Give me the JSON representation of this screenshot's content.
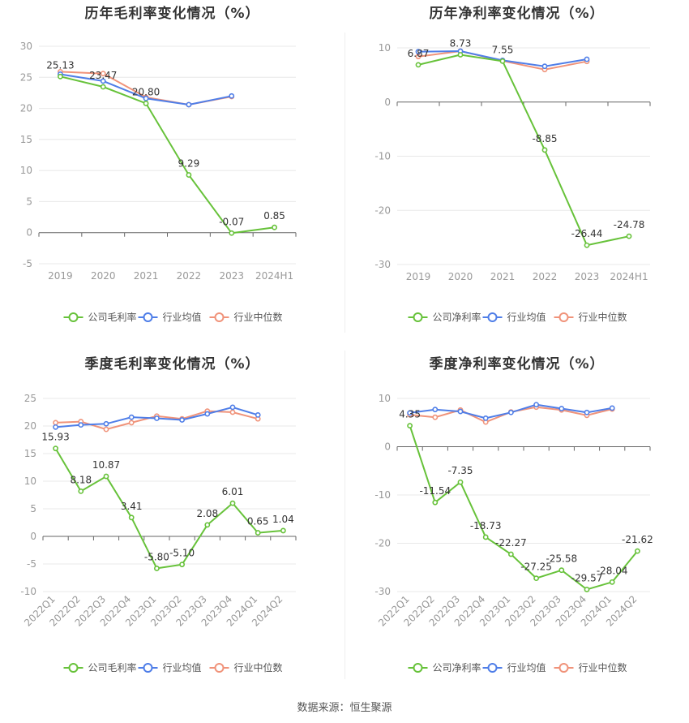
{
  "colors": {
    "company": "#67c23a",
    "avg": "#4f7ee8",
    "median": "#f0937a",
    "grid": "#e8e8e8",
    "axis": "#999999",
    "label": "#333333"
  },
  "source": "数据来源：恒生聚源",
  "chart_data": [
    {
      "type": "line",
      "title": "历年毛利率变化情况（%）",
      "categories": [
        "2019",
        "2020",
        "2021",
        "2022",
        "2023",
        "2024H1"
      ],
      "ylim": [
        -5,
        30
      ],
      "yticks": [
        -5,
        0,
        5,
        10,
        15,
        20,
        25,
        30
      ],
      "series": [
        {
          "name": "公司毛利率",
          "values": [
            25.13,
            23.47,
            20.8,
            9.29,
            -0.07,
            0.85
          ],
          "labels": [
            "25.13",
            "23.47",
            "20.80",
            "9.29",
            "-0.07",
            "0.85"
          ]
        },
        {
          "name": "行业均值",
          "values": [
            25.5,
            24.4,
            21.6,
            20.6,
            22.0,
            null
          ]
        },
        {
          "name": "行业中位数",
          "values": [
            25.9,
            25.6,
            21.8,
            20.6,
            21.9,
            null
          ]
        }
      ],
      "legend": [
        "公司毛利率",
        "行业均值",
        "行业中位数"
      ]
    },
    {
      "type": "line",
      "title": "历年净利率变化情况（%）",
      "categories": [
        "2019",
        "2020",
        "2021",
        "2022",
        "2023",
        "2024H1"
      ],
      "ylim": [
        -30,
        10
      ],
      "yticks": [
        -30,
        -20,
        -10,
        0,
        10
      ],
      "series": [
        {
          "name": "公司净利率",
          "values": [
            6.87,
            8.73,
            7.55,
            -8.85,
            -26.44,
            -24.78
          ],
          "labels": [
            "6.87",
            "8.73",
            "7.55",
            "-8.85",
            "-26.44",
            "-24.78"
          ]
        },
        {
          "name": "行业均值",
          "values": [
            9.3,
            9.4,
            7.7,
            6.6,
            7.9,
            null
          ]
        },
        {
          "name": "行业中位数",
          "values": [
            8.4,
            9.4,
            7.6,
            6.0,
            7.5,
            null
          ]
        }
      ],
      "legend": [
        "公司净利率",
        "行业均值",
        "行业中位数"
      ]
    },
    {
      "type": "line",
      "title": "季度毛利率变化情况（%）",
      "categories": [
        "2022Q1",
        "2022Q2",
        "2022Q3",
        "2022Q4",
        "2023Q1",
        "2023Q2",
        "2023Q3",
        "2023Q4",
        "2024Q1",
        "2024Q2"
      ],
      "ylim": [
        -10,
        25
      ],
      "yticks": [
        -10,
        -5,
        0,
        5,
        10,
        15,
        20,
        25
      ],
      "series": [
        {
          "name": "公司毛利率",
          "values": [
            15.93,
            8.18,
            10.87,
            3.41,
            -5.8,
            -5.1,
            2.08,
            6.01,
            0.65,
            1.04
          ],
          "labels": [
            "15.93",
            "8.18",
            "10.87",
            "3.41",
            "-5.80",
            "-5.10",
            "2.08",
            "6.01",
            "0.65",
            "1.04"
          ]
        },
        {
          "name": "行业均值",
          "values": [
            19.8,
            20.2,
            20.4,
            21.6,
            21.4,
            21.1,
            22.2,
            23.4,
            22.0,
            null
          ]
        },
        {
          "name": "行业中位数",
          "values": [
            20.6,
            20.8,
            19.4,
            20.6,
            21.8,
            21.3,
            22.7,
            22.5,
            21.3,
            null
          ]
        }
      ],
      "legend": [
        "公司毛利率",
        "行业均值",
        "行业中位数"
      ]
    },
    {
      "type": "line",
      "title": "季度净利率变化情况（%）",
      "categories": [
        "2022Q1",
        "2022Q2",
        "2022Q3",
        "2022Q4",
        "2023Q1",
        "2023Q2",
        "2023Q3",
        "2023Q4",
        "2024Q1",
        "2024Q2"
      ],
      "ylim": [
        -30,
        10
      ],
      "yticks": [
        -30,
        -20,
        -10,
        0,
        10
      ],
      "series": [
        {
          "name": "公司净利率",
          "values": [
            4.35,
            -11.54,
            -7.35,
            -18.73,
            -22.27,
            -27.25,
            -25.58,
            -29.57,
            -28.04,
            -21.62
          ],
          "labels": [
            "4.35",
            "-11.54",
            "-7.35",
            "-18.73",
            "-22.27",
            "-27.25",
            "-25.58",
            "-29.57",
            "-28.04",
            "-21.62"
          ]
        },
        {
          "name": "行业均值",
          "values": [
            7.0,
            7.7,
            7.3,
            5.9,
            7.1,
            8.7,
            7.9,
            7.1,
            8.0,
            null
          ]
        },
        {
          "name": "行业中位数",
          "values": [
            6.6,
            6.1,
            7.6,
            5.1,
            7.2,
            8.2,
            7.6,
            6.5,
            7.8,
            null
          ]
        }
      ],
      "legend": [
        "公司净利率",
        "行业均值",
        "行业中位数"
      ]
    }
  ]
}
